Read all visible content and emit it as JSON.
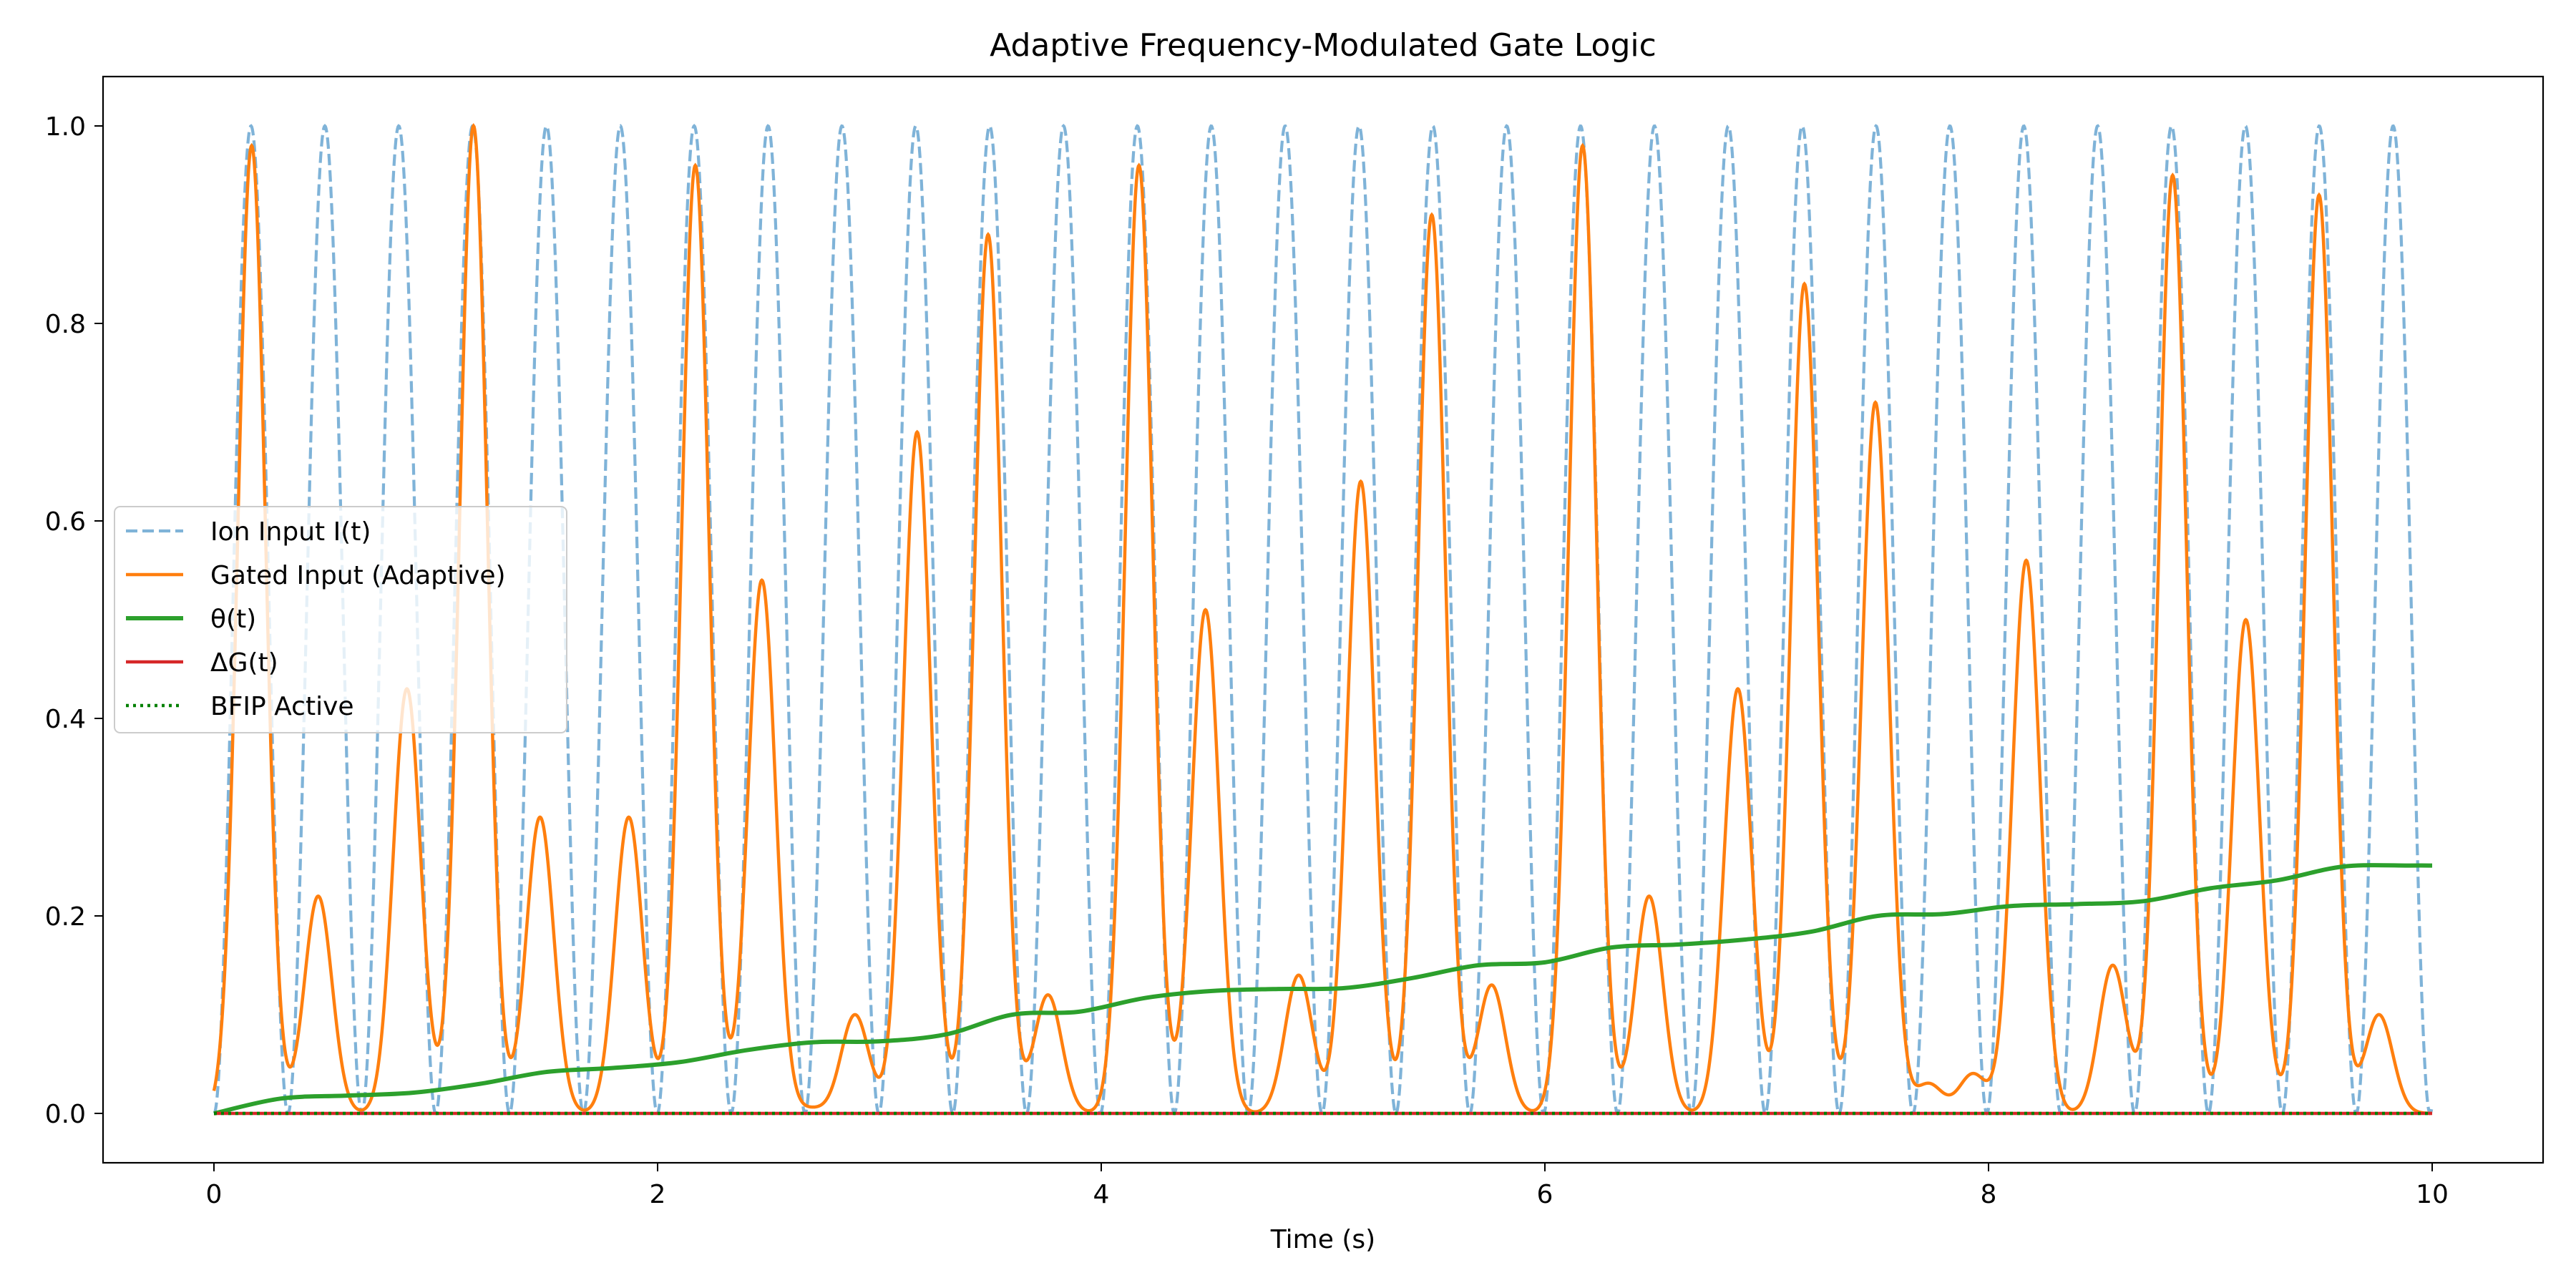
{
  "chart_data": {
    "type": "line",
    "title": "Adaptive Frequency-Modulated Gate Logic",
    "xlabel": "Time (s)",
    "ylabel": "",
    "xlim": [
      -0.5,
      10.5
    ],
    "ylim": [
      -0.05,
      1.05
    ],
    "xticks": [
      0,
      2,
      4,
      6,
      8,
      10
    ],
    "yticks": [
      0.0,
      0.2,
      0.4,
      0.6,
      0.8,
      1.0
    ],
    "xtick_labels": [
      "0",
      "2",
      "4",
      "6",
      "8",
      "10"
    ],
    "ytick_labels": [
      "0.0",
      "0.2",
      "0.4",
      "0.6",
      "0.8",
      "1.0"
    ],
    "grid": false,
    "legend_position": "center-left",
    "ion_input": {
      "period_s": 0.333,
      "peak_phase_s": 0.167,
      "min": 0.0,
      "max": 1.0
    },
    "gated_peaks": {
      "t": [
        0.17,
        0.47,
        0.87,
        1.17,
        1.47,
        1.87,
        2.17,
        2.47,
        2.69,
        2.89,
        3.17,
        3.49,
        3.76,
        4.17,
        4.47,
        4.89,
        5.17,
        5.49,
        5.76,
        6.17,
        6.47,
        6.87,
        7.17,
        7.49,
        7.73,
        7.93,
        8.17,
        8.56,
        8.83,
        9.16,
        9.49,
        9.76
      ],
      "peak": [
        0.98,
        0.22,
        0.43,
        1.0,
        0.3,
        0.3,
        0.96,
        0.54,
        0.005,
        0.1,
        0.69,
        0.89,
        0.12,
        0.96,
        0.51,
        0.14,
        0.64,
        0.91,
        0.13,
        0.98,
        0.22,
        0.43,
        0.84,
        0.72,
        0.03,
        0.04,
        0.56,
        0.15,
        0.95,
        0.5,
        0.93,
        0.1
      ]
    },
    "theta": {
      "x": [
        0,
        0.3,
        0.6,
        0.9,
        1.2,
        1.5,
        1.8,
        2.1,
        2.4,
        2.7,
        3.0,
        3.3,
        3.6,
        3.9,
        4.2,
        4.5,
        4.8,
        5.1,
        5.4,
        5.7,
        6.0,
        6.3,
        6.6,
        6.9,
        7.2,
        7.5,
        7.8,
        8.1,
        8.4,
        8.7,
        9.0,
        9.3,
        9.6,
        9.9,
        10.0
      ],
      "y": [
        0.0,
        0.015,
        0.018,
        0.021,
        0.03,
        0.042,
        0.046,
        0.052,
        0.064,
        0.072,
        0.073,
        0.08,
        0.1,
        0.103,
        0.117,
        0.124,
        0.126,
        0.127,
        0.137,
        0.15,
        0.153,
        0.168,
        0.171,
        0.176,
        0.184,
        0.2,
        0.202,
        0.21,
        0.212,
        0.215,
        0.228,
        0.236,
        0.25,
        0.251,
        0.251
      ]
    },
    "delta_g": {
      "value": 0.0
    },
    "bfip_active": {
      "value": 0.0
    },
    "series": [
      {
        "name": "Ion Input I(t)",
        "color": "#7fb3d8",
        "style": "dashed"
      },
      {
        "name": "Gated Input (Adaptive)",
        "color": "#ff7f0e",
        "style": "solid"
      },
      {
        "name": "θ(t)",
        "color": "#2ca02c",
        "style": "solid"
      },
      {
        "name": "ΔG(t)",
        "color": "#d62728",
        "style": "solid"
      },
      {
        "name": "BFIP Active",
        "color": "#008000",
        "style": "dotted"
      }
    ]
  }
}
